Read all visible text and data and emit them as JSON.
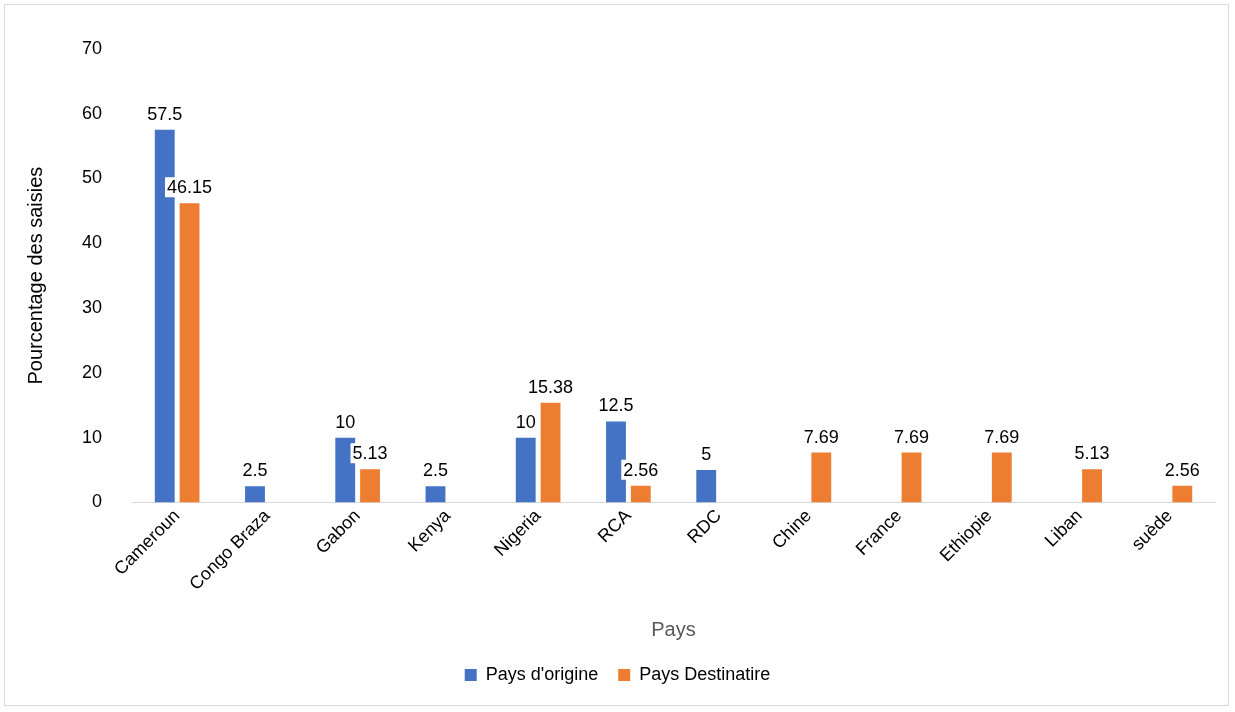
{
  "chart_data": {
    "type": "bar",
    "xlabel": "Pays",
    "ylabel": "Pourcentage des saisies",
    "categories": [
      "Cameroun",
      "Congo Braza",
      "Gabon",
      "Kenya",
      "Nigeria",
      "RCA",
      "RDC",
      "Chine",
      "France",
      "Ethiopie",
      "Liban",
      "suède"
    ],
    "series": [
      {
        "name": "Pays d'origine",
        "color": "#4472c4",
        "values": [
          57.5,
          2.5,
          10,
          2.5,
          10,
          12.5,
          5,
          null,
          null,
          null,
          null,
          null
        ],
        "value_labels": [
          "57.5",
          "2.5",
          "10",
          "2.5",
          "10",
          "12.5",
          "5",
          null,
          null,
          null,
          null,
          null
        ]
      },
      {
        "name": "Pays Destinatire",
        "color": "#ed7d31",
        "values": [
          46.15,
          null,
          5.13,
          null,
          15.38,
          2.56,
          null,
          7.69,
          7.69,
          7.69,
          5.13,
          2.56
        ],
        "value_labels": [
          "46.15",
          null,
          "5.13",
          null,
          "15.38",
          "2.56",
          null,
          "7.69",
          "7.69",
          "7.69",
          "5.13",
          "2.56"
        ]
      }
    ],
    "ylim": [
      0,
      70
    ],
    "yticks": [
      0,
      10,
      20,
      30,
      40,
      50,
      60,
      70
    ],
    "grid": false,
    "legend": "bottom"
  }
}
